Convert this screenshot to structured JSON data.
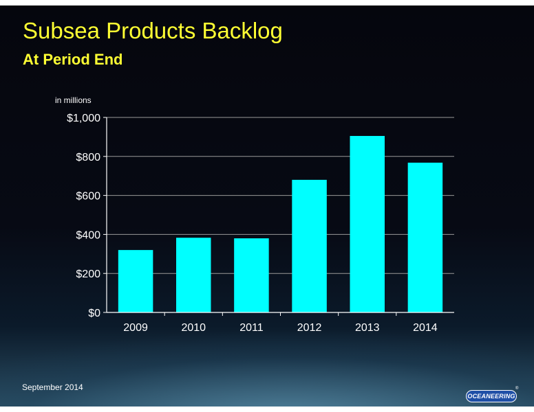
{
  "slide": {
    "title": "Subsea Products Backlog",
    "subtitle": "At Period End",
    "units_label": "in millions",
    "footer_date": "September 2014",
    "logo_text": "OCEANEERING",
    "logo_mark": "®"
  },
  "colors": {
    "title": "#ffff33",
    "bar": "#00ffff",
    "axis": "#ffffff",
    "grid": "#9a9a9a"
  },
  "chart_data": {
    "type": "bar",
    "categories": [
      "2009",
      "2010",
      "2011",
      "2012",
      "2013",
      "2014"
    ],
    "values": [
      320,
      383,
      380,
      680,
      905,
      768
    ],
    "title": "Subsea Products Backlog",
    "subtitle": "At Period End",
    "xlabel": "",
    "ylabel": "in millions",
    "ylim": [
      0,
      1000
    ],
    "yticks": [
      0,
      200,
      400,
      600,
      800,
      1000
    ],
    "ytick_labels": [
      "$0",
      "$200",
      "$400",
      "$600",
      "$800",
      "$1,000"
    ],
    "grid": true,
    "legend": "none"
  }
}
